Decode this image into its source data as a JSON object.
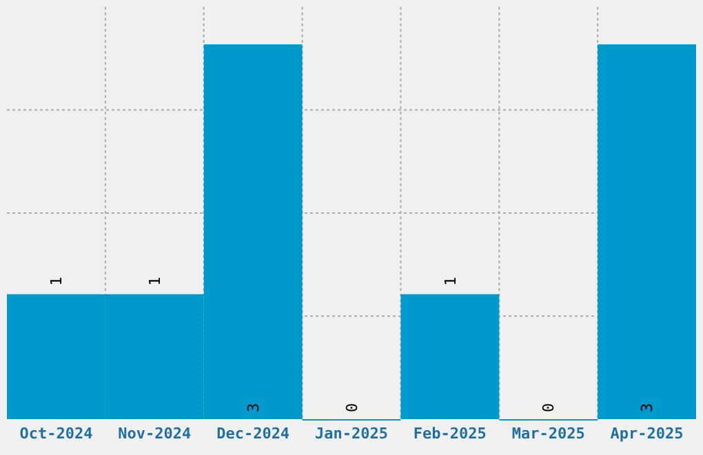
{
  "chart_data": {
    "type": "bar",
    "categories": [
      "Oct-2024",
      "Nov-2024",
      "Dec-2024",
      "Jan-2025",
      "Feb-2025",
      "Mar-2025",
      "Apr-2025"
    ],
    "values": [
      1,
      1,
      3,
      0,
      1,
      0,
      3
    ],
    "color": "#0099cc",
    "ylim": [
      0,
      3.3
    ],
    "yticks": [
      {
        "value": 0.825,
        "label": null
      },
      {
        "value": 1.65,
        "label": null
      },
      {
        "value": 2.475,
        "label": null
      }
    ],
    "grid": true,
    "data_labels": true,
    "tick_labels": "x"
  }
}
